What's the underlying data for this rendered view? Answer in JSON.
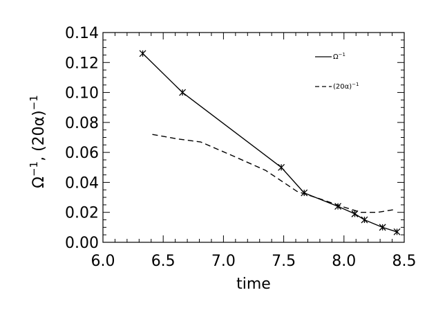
{
  "chart_data": {
    "type": "line",
    "title": "",
    "xlabel": "time",
    "ylabel_parts": [
      "Ω",
      "−1",
      ", (20α)",
      "−1"
    ],
    "xlim": [
      6.0,
      8.5
    ],
    "ylim": [
      0.0,
      0.14
    ],
    "xticks": [
      6.0,
      6.5,
      7.0,
      7.5,
      8.0,
      8.5
    ],
    "xtick_labels": [
      "6.0",
      "6.5",
      "7.0",
      "7.5",
      "8.0",
      "8.5"
    ],
    "yticks": [
      0.0,
      0.02,
      0.04,
      0.06,
      0.08,
      0.1,
      0.12,
      0.14
    ],
    "ytick_labels": [
      "0.00",
      "0.02",
      "0.04",
      "0.06",
      "0.08",
      "0.10",
      "0.12",
      "0.14"
    ],
    "grid": false,
    "legend_position": "top-right",
    "series": [
      {
        "name_parts": [
          "Ω",
          "−1"
        ],
        "line_style": "solid",
        "marker": "asterisk",
        "color": "#000000",
        "x": [
          6.33,
          6.66,
          7.48,
          7.67,
          7.95,
          8.09,
          8.17,
          8.32,
          8.44
        ],
        "y": [
          0.126,
          0.1,
          0.05,
          0.033,
          0.024,
          0.019,
          0.015,
          0.01,
          0.007
        ]
      },
      {
        "name_parts": [
          "(20α)",
          "−1"
        ],
        "line_style": "dashed",
        "marker": "none",
        "color": "#000000",
        "x": [
          6.41,
          6.62,
          6.81,
          7.07,
          7.35,
          7.61,
          7.8,
          7.98,
          8.14,
          8.28,
          8.43
        ],
        "y": [
          0.072,
          0.069,
          0.067,
          0.058,
          0.048,
          0.034,
          0.029,
          0.024,
          0.02,
          0.02,
          0.022
        ]
      }
    ]
  }
}
